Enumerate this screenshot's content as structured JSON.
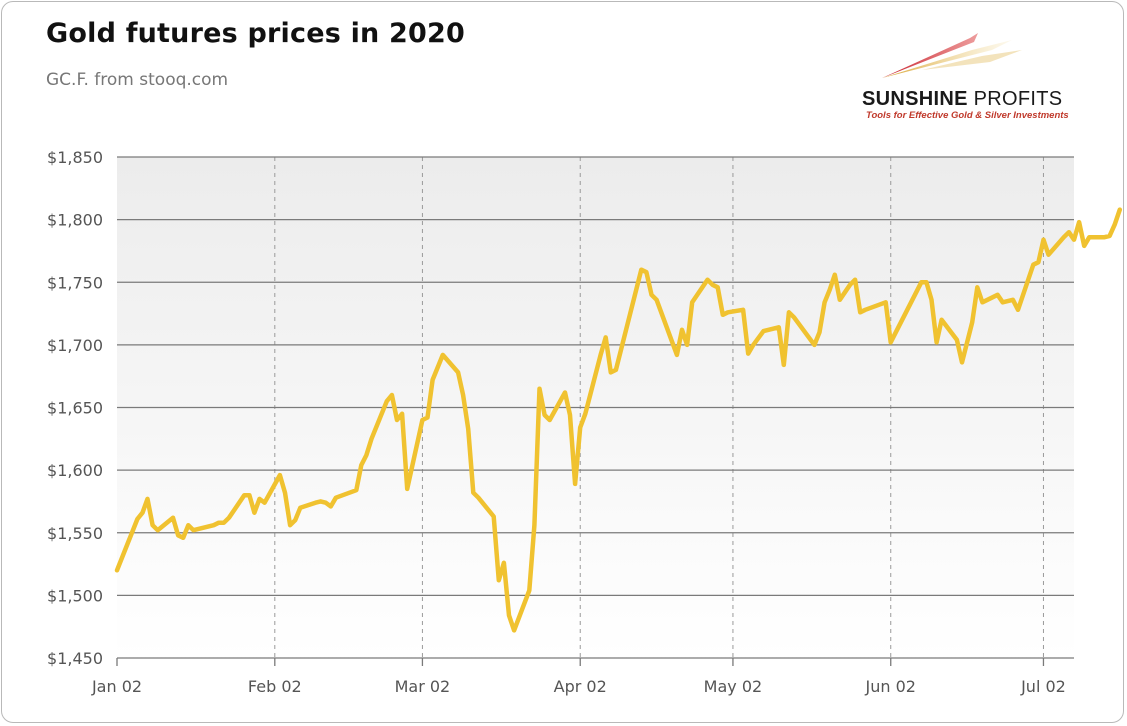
{
  "header": {
    "title": "Gold futures prices in 2020",
    "subtitle": "GC.F. from stooq.com"
  },
  "logo": {
    "name_bold": "SUNSHINE",
    "name_light": " PROFITS",
    "tagline": "Tools for Effective Gold & Silver Investments",
    "colors": {
      "red": "#c8202c",
      "gold": "#d9a431"
    }
  },
  "chart_data": {
    "type": "line",
    "title": "Gold futures prices in 2020",
    "subtitle": "GC.F. from stooq.com",
    "xlabel": "",
    "ylabel": "",
    "ylim": [
      1450,
      1850
    ],
    "yticks": [
      1450,
      1500,
      1550,
      1600,
      1650,
      1700,
      1750,
      1800,
      1850
    ],
    "ytick_labels": [
      "$1,450",
      "$1,500",
      "$1,550",
      "$1,600",
      "$1,650",
      "$1,700",
      "$1,750",
      "$1,800",
      "$1,850"
    ],
    "xlim": [
      "2020-01-02",
      "2020-07-08"
    ],
    "xticks": [
      "2020-01-02",
      "2020-02-02",
      "2020-03-02",
      "2020-04-02",
      "2020-05-02",
      "2020-06-02",
      "2020-07-02"
    ],
    "xtick_labels": [
      "Jan 02",
      "Feb 02",
      "Mar 02",
      "Apr 02",
      "May 02",
      "Jun 02",
      "Jul 02"
    ],
    "grid": {
      "horizontal": "solid",
      "vertical": "dashed"
    },
    "colors": {
      "line": "#f0c230",
      "grid": "#888888",
      "plot_bg_top": "#ececec",
      "plot_bg_bottom": "#ffffff"
    },
    "series": [
      {
        "values": [
          [
            "2020-01-02",
            1520
          ],
          [
            "2020-01-06",
            1561
          ],
          [
            "2020-01-07",
            1566
          ],
          [
            "2020-01-08",
            1577
          ],
          [
            "2020-01-09",
            1556
          ],
          [
            "2020-01-10",
            1552
          ],
          [
            "2020-01-13",
            1562
          ],
          [
            "2020-01-14",
            1548
          ],
          [
            "2020-01-15",
            1546
          ],
          [
            "2020-01-16",
            1556
          ],
          [
            "2020-01-17",
            1552
          ],
          [
            "2020-01-21",
            1556
          ],
          [
            "2020-01-22",
            1558
          ],
          [
            "2020-01-23",
            1558
          ],
          [
            "2020-01-24",
            1562
          ],
          [
            "2020-01-27",
            1580
          ],
          [
            "2020-01-28",
            1580
          ],
          [
            "2020-01-29",
            1566
          ],
          [
            "2020-01-30",
            1577
          ],
          [
            "2020-01-31",
            1574
          ],
          [
            "2020-02-03",
            1596
          ],
          [
            "2020-02-04",
            1582
          ],
          [
            "2020-02-05",
            1556
          ],
          [
            "2020-02-06",
            1560
          ],
          [
            "2020-02-07",
            1570
          ],
          [
            "2020-02-10",
            1574
          ],
          [
            "2020-02-11",
            1575
          ],
          [
            "2020-02-12",
            1574
          ],
          [
            "2020-02-13",
            1571
          ],
          [
            "2020-02-14",
            1578
          ],
          [
            "2020-02-18",
            1584
          ],
          [
            "2020-02-19",
            1604
          ],
          [
            "2020-02-20",
            1612
          ],
          [
            "2020-02-21",
            1625
          ],
          [
            "2020-02-24",
            1655
          ],
          [
            "2020-02-25",
            1660
          ],
          [
            "2020-02-26",
            1640
          ],
          [
            "2020-02-27",
            1645
          ],
          [
            "2020-02-28",
            1585
          ],
          [
            "2020-03-02",
            1640
          ],
          [
            "2020-03-03",
            1642
          ],
          [
            "2020-03-04",
            1672
          ],
          [
            "2020-03-06",
            1692
          ],
          [
            "2020-03-09",
            1678
          ],
          [
            "2020-03-10",
            1660
          ],
          [
            "2020-03-11",
            1633
          ],
          [
            "2020-03-12",
            1582
          ],
          [
            "2020-03-13",
            1578
          ],
          [
            "2020-03-16",
            1563
          ],
          [
            "2020-03-17",
            1512
          ],
          [
            "2020-03-18",
            1526
          ],
          [
            "2020-03-19",
            1484
          ],
          [
            "2020-03-20",
            1472
          ],
          [
            "2020-03-23",
            1504
          ],
          [
            "2020-03-24",
            1556
          ],
          [
            "2020-03-25",
            1665
          ],
          [
            "2020-03-26",
            1644
          ],
          [
            "2020-03-27",
            1640
          ],
          [
            "2020-03-30",
            1662
          ],
          [
            "2020-03-31",
            1644
          ],
          [
            "2020-04-01",
            1589
          ],
          [
            "2020-04-02",
            1634
          ],
          [
            "2020-04-03",
            1645
          ],
          [
            "2020-04-06",
            1692
          ],
          [
            "2020-04-07",
            1706
          ],
          [
            "2020-04-08",
            1678
          ],
          [
            "2020-04-09",
            1680
          ],
          [
            "2020-04-14",
            1760
          ],
          [
            "2020-04-15",
            1758
          ],
          [
            "2020-04-16",
            1740
          ],
          [
            "2020-04-17",
            1736
          ],
          [
            "2020-04-21",
            1692
          ],
          [
            "2020-04-22",
            1712
          ],
          [
            "2020-04-23",
            1700
          ],
          [
            "2020-04-24",
            1734
          ],
          [
            "2020-04-27",
            1752
          ],
          [
            "2020-04-28",
            1748
          ],
          [
            "2020-04-29",
            1746
          ],
          [
            "2020-04-30",
            1724
          ],
          [
            "2020-05-01",
            1726
          ],
          [
            "2020-05-04",
            1728
          ],
          [
            "2020-05-05",
            1693
          ],
          [
            "2020-05-06",
            1700
          ],
          [
            "2020-05-08",
            1711
          ],
          [
            "2020-05-11",
            1714
          ],
          [
            "2020-05-12",
            1684
          ],
          [
            "2020-05-13",
            1726
          ],
          [
            "2020-05-14",
            1722
          ],
          [
            "2020-05-18",
            1700
          ],
          [
            "2020-05-19",
            1710
          ],
          [
            "2020-05-20",
            1734
          ],
          [
            "2020-05-21",
            1744
          ],
          [
            "2020-05-22",
            1756
          ],
          [
            "2020-05-23",
            1736
          ],
          [
            "2020-05-25",
            1748
          ],
          [
            "2020-05-26",
            1752
          ],
          [
            "2020-05-27",
            1726
          ],
          [
            "2020-05-28",
            1728
          ],
          [
            "2020-06-01",
            1734
          ],
          [
            "2020-06-02",
            1702
          ],
          [
            "2020-06-03",
            1710
          ],
          [
            "2020-06-05",
            1726
          ],
          [
            "2020-06-08",
            1750
          ],
          [
            "2020-06-09",
            1750
          ],
          [
            "2020-06-10",
            1736
          ],
          [
            "2020-06-11",
            1702
          ],
          [
            "2020-06-12",
            1720
          ],
          [
            "2020-06-15",
            1704
          ],
          [
            "2020-06-16",
            1686
          ],
          [
            "2020-06-18",
            1718
          ],
          [
            "2020-06-19",
            1746
          ],
          [
            "2020-06-20",
            1734
          ],
          [
            "2020-06-23",
            1740
          ],
          [
            "2020-06-24",
            1734
          ],
          [
            "2020-06-26",
            1736
          ],
          [
            "2020-06-27",
            1728
          ],
          [
            "2020-06-30",
            1764
          ],
          [
            "2020-07-01",
            1766
          ],
          [
            "2020-07-02",
            1784
          ],
          [
            "2020-07-03",
            1772
          ],
          [
            "2020-07-06",
            1786
          ],
          [
            "2020-07-07",
            1790
          ],
          [
            "2020-07-08",
            1784
          ],
          [
            "2020-07-09",
            1798
          ],
          [
            "2020-07-10",
            1779
          ],
          [
            "2020-07-11",
            1786
          ],
          [
            "2020-07-14",
            1786
          ],
          [
            "2020-07-15",
            1787
          ],
          [
            "2020-07-16",
            1796
          ],
          [
            "2020-07-17",
            1808
          ]
        ]
      }
    ]
  }
}
